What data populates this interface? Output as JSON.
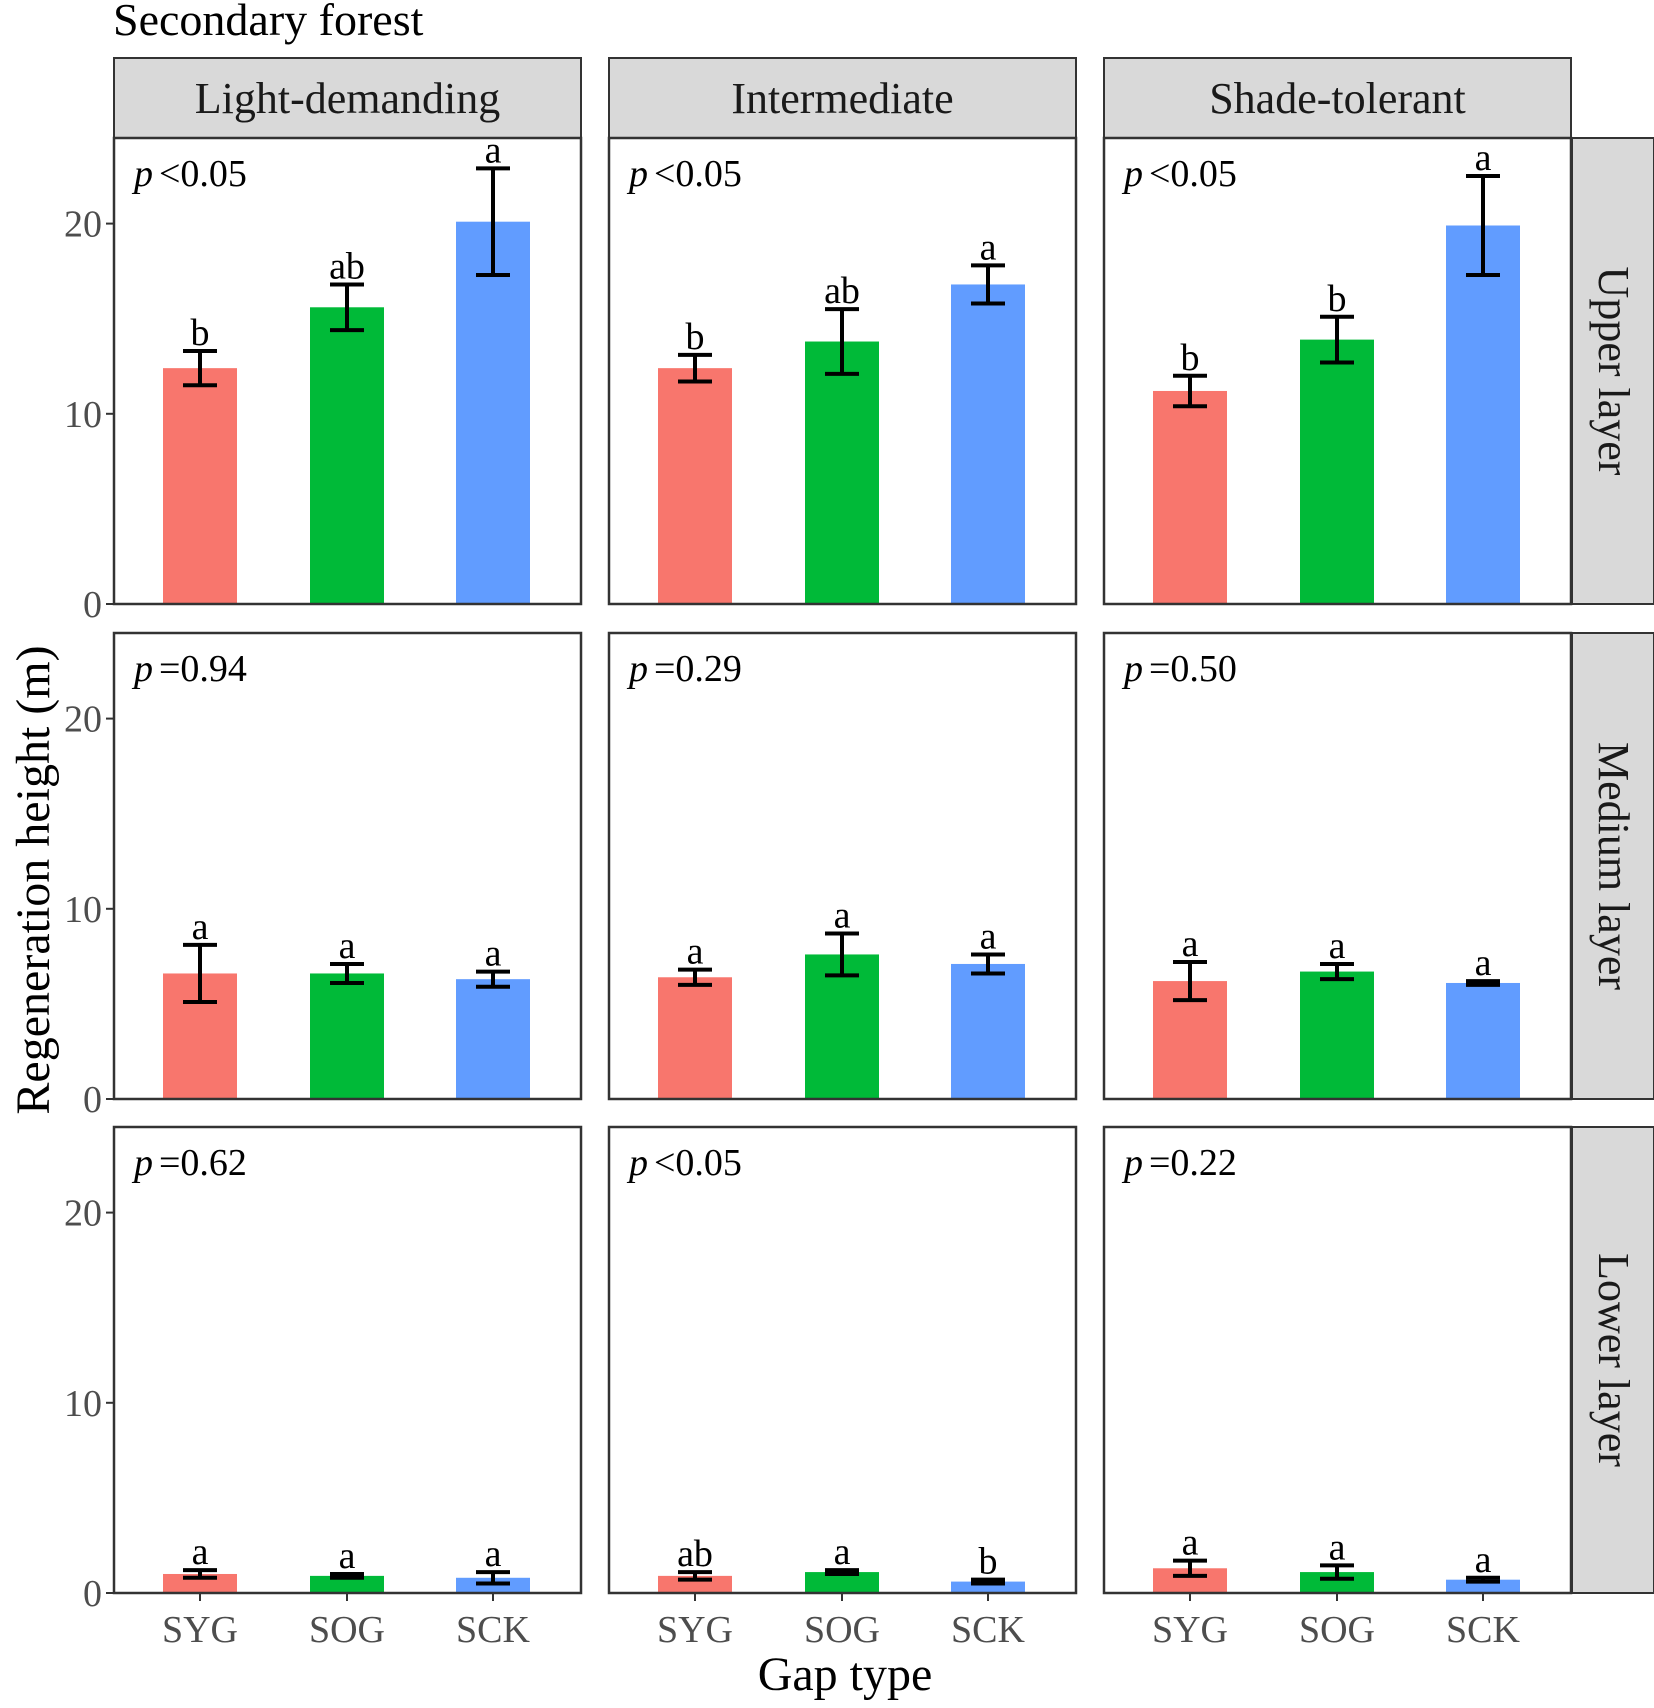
{
  "chart_data": {
    "type": "bar",
    "title": "Secondary forest",
    "xlabel": "Gap type",
    "ylabel": "Regeneration height (m)",
    "ylim": [
      0,
      24.5
    ],
    "yticks": [
      0,
      10,
      20
    ],
    "categories": [
      "SYG",
      "SOG",
      "SCK"
    ],
    "colors": {
      "SYG": "#F8766D",
      "SOG": "#00BA38",
      "SCK": "#619CFF"
    },
    "grid": false,
    "column_facets": [
      "Light-demanding",
      "Intermediate",
      "Shade-tolerant"
    ],
    "row_facets": [
      "Upper layer",
      "Medium layer",
      "Lower layer"
    ],
    "panels": [
      {
        "row": 0,
        "col": 0,
        "p_symbol": "p",
        "p_text": "<0.05",
        "values": [
          12.4,
          15.6,
          20.1
        ],
        "errors": [
          0.9,
          1.2,
          2.8
        ],
        "letters": [
          "b",
          "ab",
          "a"
        ]
      },
      {
        "row": 0,
        "col": 1,
        "p_symbol": "p",
        "p_text": "<0.05",
        "values": [
          12.4,
          13.8,
          16.8
        ],
        "errors": [
          0.7,
          1.7,
          1.0
        ],
        "letters": [
          "b",
          "ab",
          "a"
        ]
      },
      {
        "row": 0,
        "col": 2,
        "p_symbol": "p",
        "p_text": "<0.05",
        "values": [
          11.2,
          13.9,
          19.9
        ],
        "errors": [
          0.8,
          1.2,
          2.6
        ],
        "letters": [
          "b",
          "b",
          "a"
        ]
      },
      {
        "row": 1,
        "col": 0,
        "p_symbol": "p",
        "p_text": "=0.94",
        "values": [
          6.6,
          6.6,
          6.3
        ],
        "errors": [
          1.5,
          0.5,
          0.4
        ],
        "letters": [
          "a",
          "a",
          "a"
        ]
      },
      {
        "row": 1,
        "col": 1,
        "p_symbol": "p",
        "p_text": "=0.29",
        "values": [
          6.4,
          7.6,
          7.1
        ],
        "errors": [
          0.4,
          1.1,
          0.5
        ],
        "letters": [
          "a",
          "a",
          "a"
        ]
      },
      {
        "row": 1,
        "col": 2,
        "p_symbol": "p",
        "p_text": "=0.50",
        "values": [
          6.2,
          6.7,
          6.1
        ],
        "errors": [
          1.0,
          0.4,
          0.1
        ],
        "letters": [
          "a",
          "a",
          "a"
        ]
      },
      {
        "row": 2,
        "col": 0,
        "p_symbol": "p",
        "p_text": "=0.62",
        "values": [
          1.0,
          0.9,
          0.8
        ],
        "errors": [
          0.2,
          0.1,
          0.3
        ],
        "letters": [
          "a",
          "a",
          "a"
        ]
      },
      {
        "row": 2,
        "col": 1,
        "p_symbol": "p",
        "p_text": "<0.05",
        "values": [
          0.9,
          1.1,
          0.6
        ],
        "errors": [
          0.2,
          0.1,
          0.1
        ],
        "letters": [
          "ab",
          "a",
          "b"
        ]
      },
      {
        "row": 2,
        "col": 2,
        "p_symbol": "p",
        "p_text": "=0.22",
        "values": [
          1.3,
          1.1,
          0.7
        ],
        "errors": [
          0.4,
          0.35,
          0.1
        ],
        "letters": [
          "a",
          "a",
          "a"
        ]
      }
    ]
  }
}
